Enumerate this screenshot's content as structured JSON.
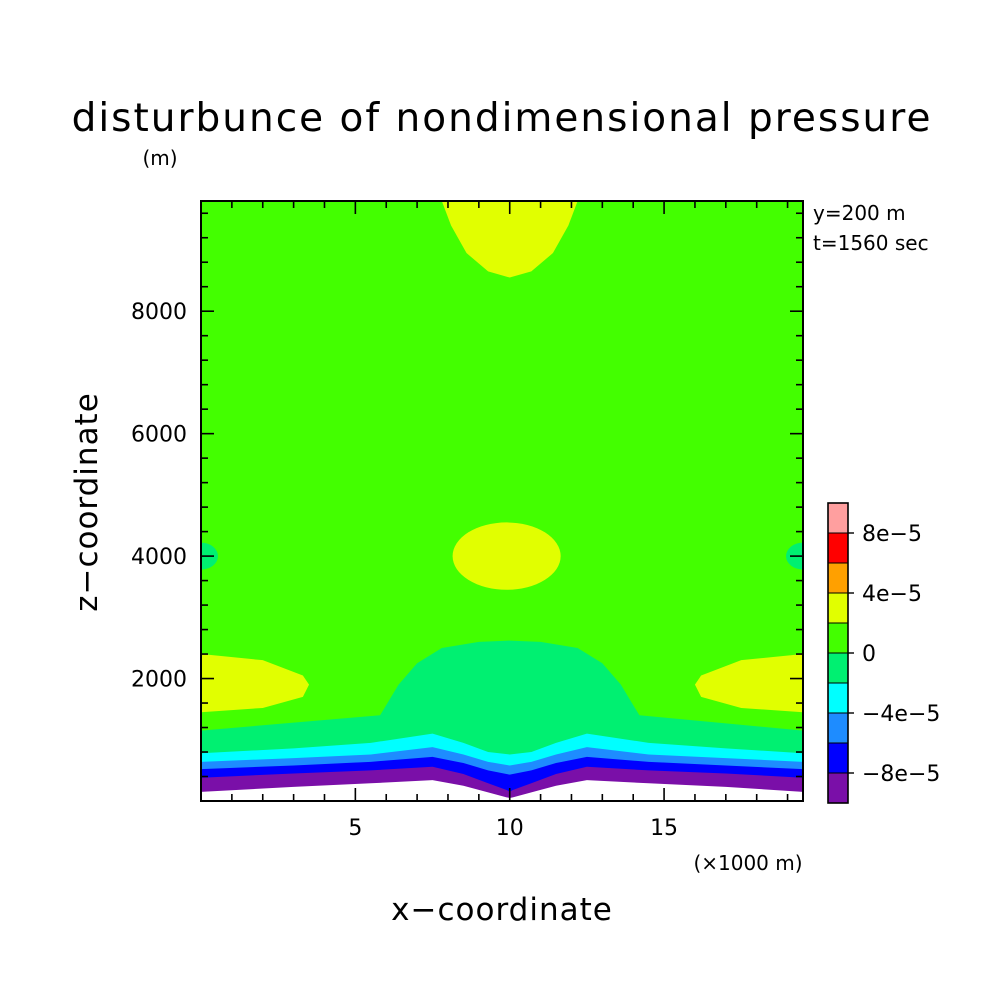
{
  "chart_data": {
    "type": "heatmap",
    "title": "disturbunce of nondimensional pressure",
    "y_unit": "(m)",
    "x_unit": "(×1000 m)",
    "xlabel": "x−coordinate",
    "ylabel": "z−coordinate",
    "annotations": [
      "y=200 m",
      "t=1560 sec"
    ],
    "xlim": [
      0,
      19.5
    ],
    "ylim": [
      0,
      9800
    ],
    "x_ticks": [
      5,
      10,
      15
    ],
    "x_tick_labels": [
      "5",
      "10",
      "15"
    ],
    "y_ticks": [
      2000,
      4000,
      6000,
      8000
    ],
    "y_tick_labels": [
      "2000",
      "4000",
      "6000",
      "8000"
    ],
    "x_minor_step": 1,
    "y_minor_step": 400,
    "colorbar": {
      "levels": [
        {
          "lower": -0.0001,
          "upper": -8e-05,
          "color": "#7a0fa8"
        },
        {
          "lower": -8e-05,
          "upper": -6e-05,
          "color": "#0000ff"
        },
        {
          "lower": -6e-05,
          "upper": -4e-05,
          "color": "#1e8cff"
        },
        {
          "lower": -4e-05,
          "upper": -2e-05,
          "color": "#00ffff"
        },
        {
          "lower": -2e-05,
          "upper": 0,
          "color": "#00f071"
        },
        {
          "lower": 0,
          "upper": 2e-05,
          "color": "#43ff00"
        },
        {
          "lower": 2e-05,
          "upper": 4e-05,
          "color": "#e1ff00"
        },
        {
          "lower": 4e-05,
          "upper": 6e-05,
          "color": "#ffa000"
        },
        {
          "lower": 6e-05,
          "upper": 8e-05,
          "color": "#ff0000"
        },
        {
          "lower": 8e-05,
          "upper": 0.0001,
          "color": "#ff9f9f"
        }
      ],
      "tick_values": [
        -8e-05,
        -4e-05,
        0,
        4e-05,
        8e-05
      ],
      "tick_labels": [
        "−8e−5",
        "−4e−5",
        "0",
        "4e−5",
        "8e−5"
      ]
    },
    "background_level_color": "#43ff00",
    "regions": [
      {
        "level": 6,
        "shape": "ellipse",
        "cx": 9.9,
        "cz": 4000,
        "rx": 1.75,
        "rz": 550
      },
      {
        "level": 6,
        "shape": "polygon",
        "points": [
          [
            7.8,
            9800
          ],
          [
            8.1,
            9400
          ],
          [
            8.6,
            8950
          ],
          [
            9.3,
            8650
          ],
          [
            10.0,
            8550
          ],
          [
            10.7,
            8650
          ],
          [
            11.4,
            8950
          ],
          [
            11.9,
            9400
          ],
          [
            12.2,
            9800
          ]
        ]
      },
      {
        "level": 6,
        "shape": "polygon",
        "points": [
          [
            0,
            2400
          ],
          [
            2.0,
            2300
          ],
          [
            3.3,
            2050
          ],
          [
            3.5,
            1900
          ],
          [
            3.3,
            1700
          ],
          [
            2.0,
            1520
          ],
          [
            0,
            1450
          ]
        ]
      },
      {
        "level": 6,
        "shape": "polygon",
        "points": [
          [
            19.5,
            2400
          ],
          [
            17.5,
            2300
          ],
          [
            16.2,
            2050
          ],
          [
            16.0,
            1900
          ],
          [
            16.2,
            1700
          ],
          [
            17.5,
            1520
          ],
          [
            19.5,
            1450
          ]
        ]
      },
      {
        "level": 4,
        "shape": "ellipse",
        "cx": 0,
        "cz": 4000,
        "rx": 0.55,
        "rz": 220
      },
      {
        "level": 4,
        "shape": "ellipse",
        "cx": 19.5,
        "cz": 4000,
        "rx": 0.55,
        "rz": 220
      },
      {
        "level": 4,
        "shape": "polygon",
        "points": [
          [
            0,
            1150
          ],
          [
            5.8,
            1400
          ],
          [
            6.4,
            1900
          ],
          [
            7.0,
            2250
          ],
          [
            7.8,
            2500
          ],
          [
            9.0,
            2600
          ],
          [
            10.0,
            2620
          ],
          [
            11.0,
            2600
          ],
          [
            12.2,
            2500
          ],
          [
            13.0,
            2250
          ],
          [
            13.6,
            1900
          ],
          [
            14.2,
            1400
          ],
          [
            19.5,
            1150
          ],
          [
            19.5,
            0
          ],
          [
            0,
            0
          ]
        ]
      },
      {
        "level": 3,
        "shape": "polygon",
        "points": [
          [
            0,
            780
          ],
          [
            3.0,
            860
          ],
          [
            5.5,
            950
          ],
          [
            7.5,
            1100
          ],
          [
            8.5,
            950
          ],
          [
            9.3,
            800
          ],
          [
            10.0,
            760
          ],
          [
            10.7,
            800
          ],
          [
            11.5,
            950
          ],
          [
            12.5,
            1100
          ],
          [
            14.5,
            950
          ],
          [
            17.0,
            860
          ],
          [
            19.5,
            780
          ],
          [
            19.5,
            0
          ],
          [
            0,
            0
          ]
        ]
      },
      {
        "level": 2,
        "shape": "polygon",
        "points": [
          [
            0,
            640
          ],
          [
            3.0,
            700
          ],
          [
            5.5,
            760
          ],
          [
            7.5,
            880
          ],
          [
            8.5,
            760
          ],
          [
            9.3,
            640
          ],
          [
            10.0,
            580
          ],
          [
            10.7,
            640
          ],
          [
            11.5,
            760
          ],
          [
            12.5,
            880
          ],
          [
            14.5,
            760
          ],
          [
            17.0,
            700
          ],
          [
            19.5,
            640
          ],
          [
            19.5,
            0
          ],
          [
            0,
            0
          ]
        ]
      },
      {
        "level": 1,
        "shape": "polygon",
        "points": [
          [
            0,
            520
          ],
          [
            3.0,
            580
          ],
          [
            5.5,
            640
          ],
          [
            7.5,
            720
          ],
          [
            8.5,
            620
          ],
          [
            9.3,
            500
          ],
          [
            10.0,
            430
          ],
          [
            10.7,
            500
          ],
          [
            11.5,
            620
          ],
          [
            12.5,
            720
          ],
          [
            14.5,
            640
          ],
          [
            17.0,
            580
          ],
          [
            19.5,
            520
          ],
          [
            19.5,
            0
          ],
          [
            0,
            0
          ]
        ]
      },
      {
        "level": 0,
        "shape": "polygon",
        "points": [
          [
            0,
            380
          ],
          [
            3.0,
            450
          ],
          [
            5.5,
            500
          ],
          [
            7.5,
            560
          ],
          [
            8.5,
            440
          ],
          [
            9.3,
            290
          ],
          [
            9.9,
            180
          ],
          [
            10.0,
            150
          ],
          [
            10.1,
            180
          ],
          [
            10.7,
            290
          ],
          [
            11.5,
            440
          ],
          [
            12.5,
            560
          ],
          [
            14.5,
            500
          ],
          [
            17.0,
            450
          ],
          [
            19.5,
            380
          ],
          [
            19.5,
            0
          ],
          [
            0,
            0
          ]
        ]
      },
      {
        "level": -1,
        "shape": "polygon",
        "points": [
          [
            0,
            150
          ],
          [
            3.0,
            230
          ],
          [
            5.5,
            290
          ],
          [
            7.5,
            340
          ],
          [
            8.5,
            250
          ],
          [
            9.3,
            140
          ],
          [
            9.9,
            60
          ],
          [
            10.0,
            50
          ],
          [
            10.1,
            60
          ],
          [
            10.7,
            140
          ],
          [
            11.5,
            250
          ],
          [
            12.5,
            340
          ],
          [
            14.5,
            290
          ],
          [
            17.0,
            230
          ],
          [
            19.5,
            150
          ],
          [
            19.5,
            0
          ],
          [
            0,
            0
          ]
        ]
      }
    ]
  }
}
